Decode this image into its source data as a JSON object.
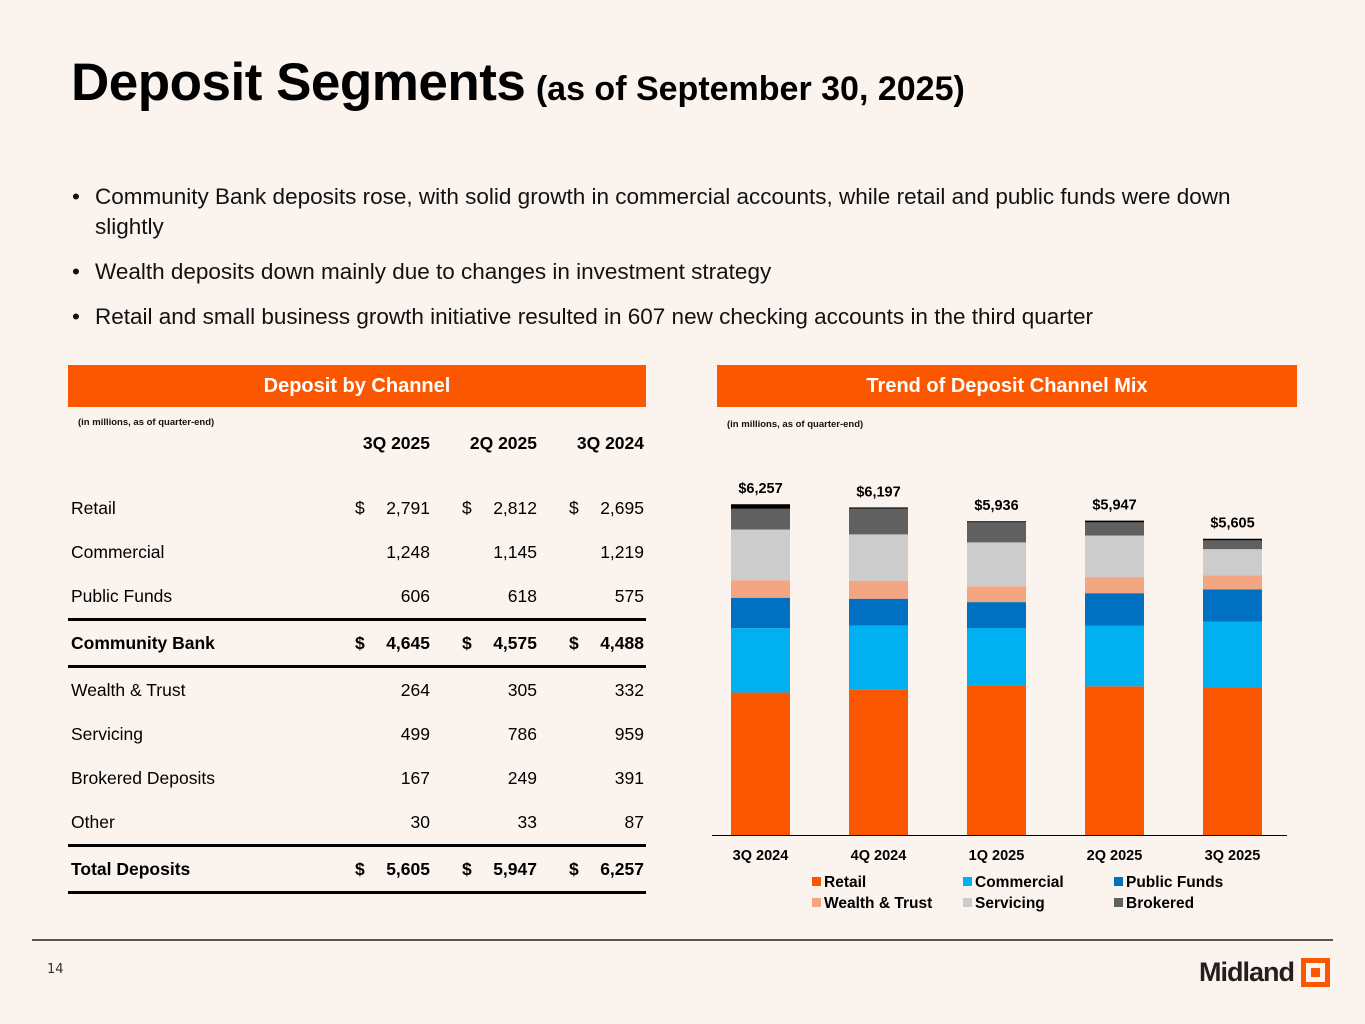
{
  "page": {
    "title": "Deposit Segments",
    "subtitle": "(as of September 30, 2025)",
    "page_number": "14",
    "logo_text": "Midland"
  },
  "bullets": [
    "Community Bank deposits rose, with solid growth in commercial accounts, while retail and public funds were down slightly",
    "Wealth deposits down mainly due to changes in investment strategy",
    "Retail and small business growth initiative resulted in 607 new checking accounts in the third quarter"
  ],
  "bullet_char": "•",
  "colors": {
    "accent": "#fa5700",
    "retail": "#fa5700",
    "commercial": "#00b0f0",
    "public_funds": "#0070c0",
    "wealth_trust": "#f4a582",
    "servicing": "#cccccc",
    "brokered": "#606060",
    "other": "#000000"
  },
  "table": {
    "header": "Deposit by Channel",
    "note": "(in millions, as of quarter-end)",
    "columns": [
      "3Q 2025",
      "2Q 2025",
      "3Q 2024"
    ],
    "rows": [
      {
        "label": "Retail",
        "values": [
          "2,791",
          "2,812",
          "2,695"
        ],
        "currency": true,
        "bold": false
      },
      {
        "label": "Commercial",
        "values": [
          "1,248",
          "1,145",
          "1,219"
        ],
        "currency": false,
        "bold": false
      },
      {
        "label": "Public Funds",
        "values": [
          "606",
          "618",
          "575"
        ],
        "currency": false,
        "bold": false
      },
      {
        "label": "Community Bank",
        "values": [
          "4,645",
          "4,575",
          "4,488"
        ],
        "currency": true,
        "bold": true
      },
      {
        "label": "Wealth & Trust",
        "values": [
          "264",
          "305",
          "332"
        ],
        "currency": false,
        "bold": false
      },
      {
        "label": "Servicing",
        "values": [
          "499",
          "786",
          "959"
        ],
        "currency": false,
        "bold": false
      },
      {
        "label": "Brokered Deposits",
        "values": [
          "167",
          "249",
          "391"
        ],
        "currency": false,
        "bold": false
      },
      {
        "label": "Other",
        "values": [
          "30",
          "33",
          "87"
        ],
        "currency": false,
        "bold": false
      },
      {
        "label": "Total Deposits",
        "values": [
          "5,605",
          "5,947",
          "6,257"
        ],
        "currency": true,
        "bold": true
      }
    ],
    "currency_symbol": "$"
  },
  "chart_data": {
    "type": "bar",
    "stacked": true,
    "title": "Trend of Deposit Channel Mix",
    "note": "(in millions, as of quarter-end)",
    "xlabel": "",
    "ylabel": "",
    "ylim": [
      0,
      6300
    ],
    "grid": false,
    "legend_position": "bottom",
    "categories": [
      "3Q 2024",
      "4Q 2024",
      "1Q 2025",
      "2Q 2025",
      "3Q 2025"
    ],
    "totals": [
      6257,
      6197,
      5936,
      5947,
      5605
    ],
    "total_labels": [
      "$6,257",
      "$6,197",
      "$5,936",
      "$5,947",
      "$5,605"
    ],
    "series": [
      {
        "name": "Retail",
        "key": "retail",
        "in_legend": true,
        "values": [
          2695,
          2750,
          2836,
          2812,
          2791
        ]
      },
      {
        "name": "Commercial",
        "key": "commercial",
        "in_legend": true,
        "values": [
          1219,
          1210,
          1080,
          1145,
          1248
        ]
      },
      {
        "name": "Public Funds",
        "key": "public_funds",
        "in_legend": true,
        "values": [
          575,
          510,
          490,
          618,
          606
        ]
      },
      {
        "name": "Wealth & Trust",
        "key": "wealth_trust",
        "in_legend": true,
        "values": [
          332,
          340,
          300,
          305,
          264
        ]
      },
      {
        "name": "Servicing",
        "key": "servicing",
        "in_legend": true,
        "values": [
          959,
          877,
          830,
          786,
          499
        ]
      },
      {
        "name": "Brokered",
        "key": "brokered",
        "in_legend": true,
        "values": [
          391,
          490,
          380,
          249,
          167
        ]
      },
      {
        "name": "Other",
        "key": "other",
        "in_legend": false,
        "values": [
          87,
          20,
          20,
          33,
          30
        ]
      }
    ]
  }
}
